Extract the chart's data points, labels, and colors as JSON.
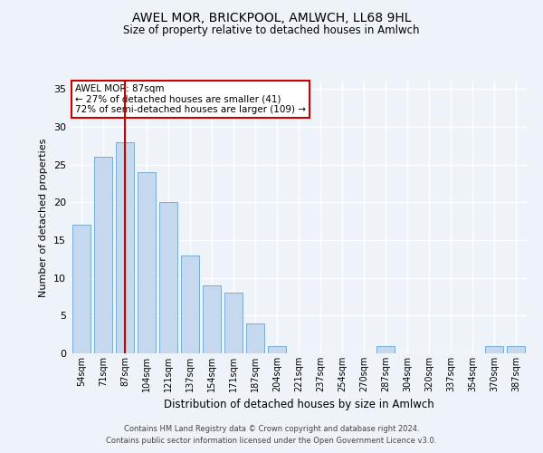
{
  "title1": "AWEL MOR, BRICKPOOL, AMLWCH, LL68 9HL",
  "title2": "Size of property relative to detached houses in Amlwch",
  "xlabel": "Distribution of detached houses by size in Amlwch",
  "ylabel": "Number of detached properties",
  "categories": [
    "54sqm",
    "71sqm",
    "87sqm",
    "104sqm",
    "121sqm",
    "137sqm",
    "154sqm",
    "171sqm",
    "187sqm",
    "204sqm",
    "221sqm",
    "237sqm",
    "254sqm",
    "270sqm",
    "287sqm",
    "304sqm",
    "320sqm",
    "337sqm",
    "354sqm",
    "370sqm",
    "387sqm"
  ],
  "values": [
    17,
    26,
    28,
    24,
    20,
    13,
    9,
    8,
    4,
    1,
    0,
    0,
    0,
    0,
    1,
    0,
    0,
    0,
    0,
    1,
    1
  ],
  "bar_color": "#c5d8ed",
  "bar_edge_color": "#7aadd4",
  "highlight_index": 2,
  "highlight_line_color": "#cc0000",
  "ylim": [
    0,
    36
  ],
  "yticks": [
    0,
    5,
    10,
    15,
    20,
    25,
    30,
    35
  ],
  "annotation_text": "AWEL MOR: 87sqm\n← 27% of detached houses are smaller (41)\n72% of semi-detached houses are larger (109) →",
  "annotation_box_color": "#ffffff",
  "annotation_box_edge_color": "#cc0000",
  "footer1": "Contains HM Land Registry data © Crown copyright and database right 2024.",
  "footer2": "Contains public sector information licensed under the Open Government Licence v3.0.",
  "background_color": "#eef2f9",
  "grid_color": "#ffffff"
}
